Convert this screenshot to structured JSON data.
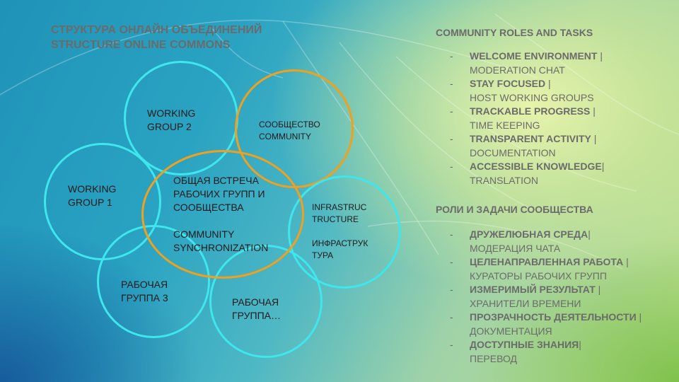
{
  "title": {
    "line1": "СТРУКТУРА ОНЛАЙН ОБЪЕДИНЕНИЙ",
    "line2": "STRUCTURE ONLINE COMMONS"
  },
  "diagram": {
    "working_group_2": [
      "WORKING",
      "GROUP 2"
    ],
    "community": [
      "СООБЩЕСТВО",
      "COMMUNITY"
    ],
    "working_group_1": [
      "WORKING",
      "GROUP 1"
    ],
    "sync": [
      "ОБЩАЯ ВСТРЕЧА",
      "РАБОЧИХ ГРУПП И",
      "СООБЩЕСТВА",
      "",
      "COMMUNITY",
      "SYNCHRONIZATION"
    ],
    "infrastructure": [
      "INFRASTRUC",
      "TRUCTURE",
      "",
      "ИНФРАСТРУК",
      "ТУРА"
    ],
    "group_3": [
      "РАБОЧАЯ",
      "ГРУППА 3"
    ],
    "group_n": [
      "РАБОЧАЯ",
      "ГРУППА…"
    ]
  },
  "roles_en": {
    "title": "COMMUNITY ROLES AND TASKS",
    "items": [
      {
        "dash": "-",
        "bold": "WELCOME ENVIRONMENT",
        "sep": " |",
        "sub": "MODERATION CHAT"
      },
      {
        "dash": "-",
        "bold": "STAY FOCUSED",
        "sep": " |",
        "sub": "HOST WORKING GROUPS"
      },
      {
        "dash": "-",
        "bold": "TRACKABLE PROGRESS",
        "sep": " |",
        "sub": "TIME KEEPING"
      },
      {
        "dash": "-",
        "bold": "TRANSPARENT ACTIVITY",
        "sep": " |",
        "sub": "DOCUMENTATION"
      },
      {
        "dash": "-",
        "bold": "ACCESSIBLE KNOWLEDGE",
        "sep": "|",
        "sub": "TRANSLATION"
      }
    ]
  },
  "roles_ru": {
    "title": "РОЛИ И ЗАДАЧИ СООБЩЕСТВА",
    "items": [
      {
        "dash": "-",
        "bold": "ДРУЖЕЛЮБНАЯ СРЕДА",
        "sep": "|",
        "sub": "МОДЕРАЦИЯ ЧАТА"
      },
      {
        "dash": "-",
        "bold": "ЦЕЛЕНАПРАВЛЕННАЯ РАБОТА",
        "sep": " |",
        "sub": "КУРАТОРЫ РАБОЧИХ ГРУПП"
      },
      {
        "dash": "-",
        "bold": "ИЗМЕРИМЫЙ РЕЗУЛЬТАТ",
        "sep": " |",
        "sub": "ХРАНИТЕЛИ ВРЕМЕНИ"
      },
      {
        "dash": "-",
        "bold": "ПРОЗРАЧНОСТЬ ДЕЯТЕЛЬНОСТИ",
        "sep": " |",
        "sub": "ДОКУМЕНТАЦИЯ"
      },
      {
        "dash": "-",
        "bold": "ДОСТУПНЫЕ ЗНАНИЯ",
        "sep": "|",
        "sub": "ПЕРЕВОД"
      }
    ]
  },
  "colors": {
    "cyan_ring": "#3ee6ee",
    "orange_ring": "#f0a020",
    "text_gray": "#6b6b6b"
  }
}
